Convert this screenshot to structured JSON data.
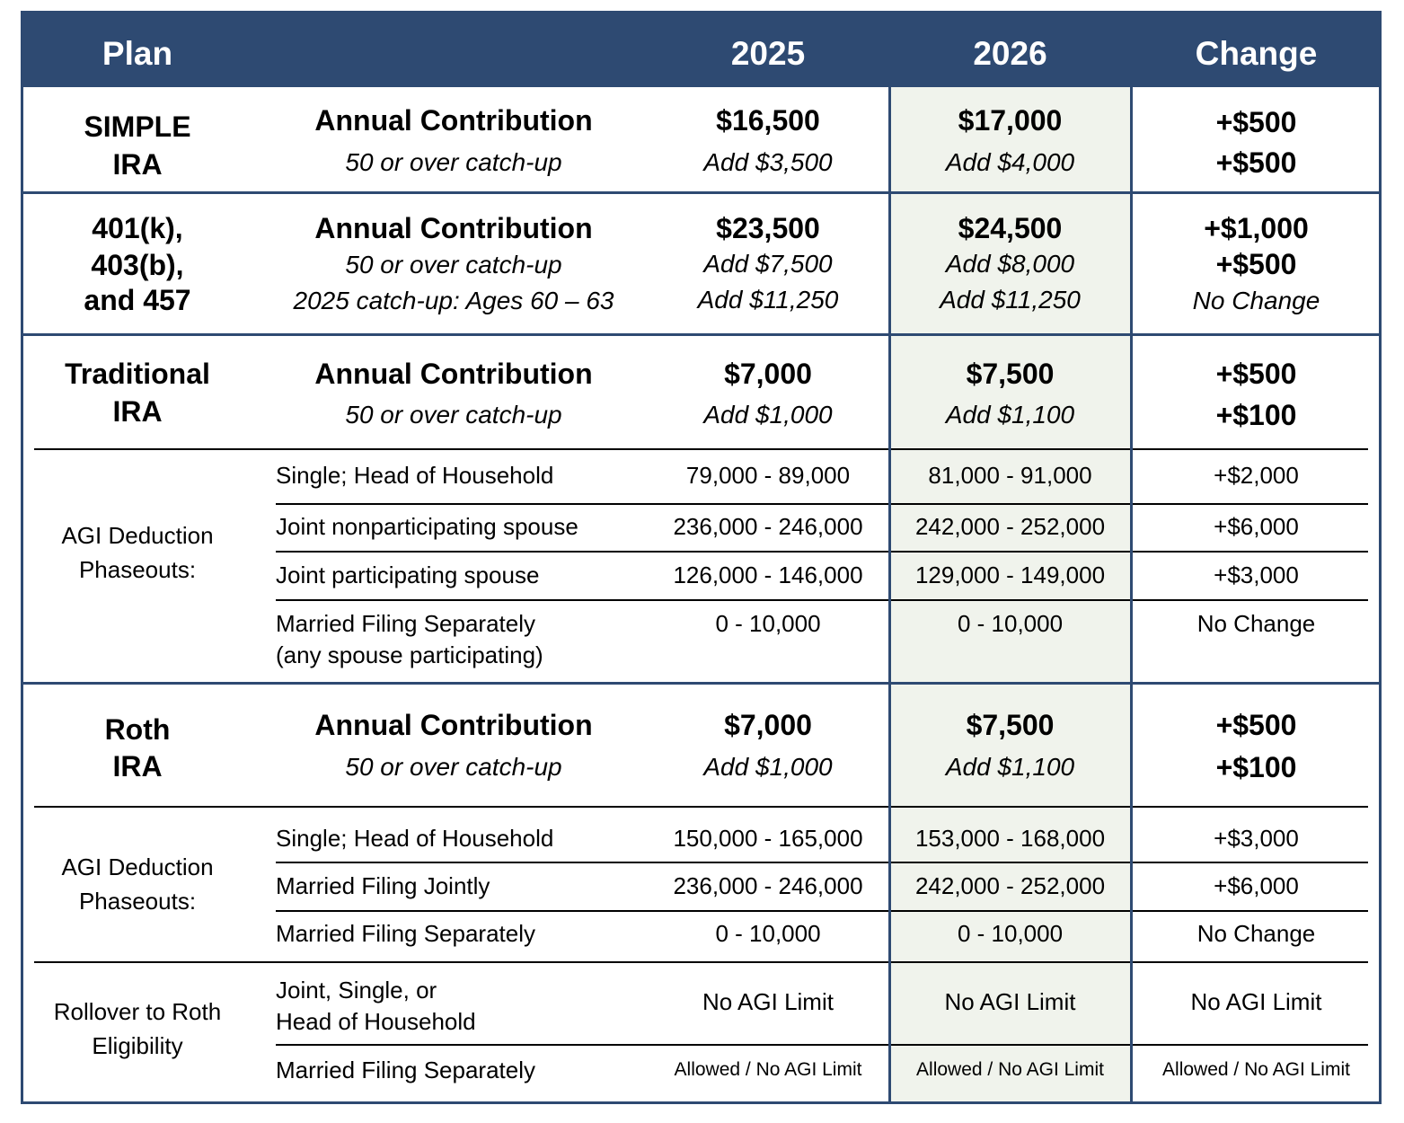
{
  "header": {
    "plan": "Plan",
    "y2025": "2025",
    "y2026": "2026",
    "change": "Change"
  },
  "colors": {
    "header_bg": "#2e4a72",
    "border": "#2e4a72",
    "highlight_column_bg": "#f0f3ec",
    "header_text": "#ffffff"
  },
  "simple": {
    "plan": [
      "SIMPLE",
      "IRA"
    ],
    "label": "Annual Contribution",
    "sublabel": "50 or over catch-up",
    "v2025": [
      "$16,500",
      "Add $3,500"
    ],
    "v2026": [
      "$17,000",
      "Add $4,000"
    ],
    "change": [
      "+$500",
      "+$500"
    ]
  },
  "k401": {
    "plan": [
      "401(k),",
      "403(b),",
      "and 457"
    ],
    "label": "Annual Contribution",
    "sublabels": [
      "50 or over catch-up",
      "2025 catch-up: Ages 60 – 63"
    ],
    "v2025": [
      "$23,500",
      "Add $7,500",
      "Add $11,250"
    ],
    "v2026": [
      "$24,500",
      "Add $8,000",
      "Add $11,250"
    ],
    "change": [
      "+$1,000",
      "+$500",
      "No Change"
    ]
  },
  "traditional": {
    "plan": [
      "Traditional",
      "IRA"
    ],
    "label": "Annual Contribution",
    "sublabel": "50 or over catch-up",
    "v2025": [
      "$7,000",
      "Add $1,000"
    ],
    "v2026": [
      "$7,500",
      "Add $1,100"
    ],
    "change": [
      "+$500",
      "+$100"
    ],
    "agi_label": [
      "AGI Deduction",
      "Phaseouts:"
    ],
    "agi_rows": [
      {
        "filer": [
          "Single; Head of Household"
        ],
        "v2025": "79,000 - 89,000",
        "v2026": "81,000 - 91,000",
        "change": "+$2,000"
      },
      {
        "filer": [
          "Joint nonparticipating spouse"
        ],
        "v2025": "236,000 - 246,000",
        "v2026": "242,000 - 252,000",
        "change": "+$6,000"
      },
      {
        "filer": [
          "Joint participating spouse"
        ],
        "v2025": "126,000 - 146,000",
        "v2026": "129,000 - 149,000",
        "change": "+$3,000"
      },
      {
        "filer": [
          "Married Filing Separately",
          "(any spouse participating)"
        ],
        "v2025": "0 - 10,000",
        "v2026": "0 - 10,000",
        "change": "No Change"
      }
    ]
  },
  "roth": {
    "plan": [
      "Roth",
      "IRA"
    ],
    "label": "Annual Contribution",
    "sublabel": "50 or over catch-up",
    "v2025": [
      "$7,000",
      "Add $1,000"
    ],
    "v2026": [
      "$7,500",
      "Add $1,100"
    ],
    "change": [
      "+$500",
      "+$100"
    ],
    "agi_label": [
      "AGI Deduction",
      "Phaseouts:"
    ],
    "agi_rows": [
      {
        "filer": [
          "Single; Head of Household"
        ],
        "v2025": "150,000 - 165,000",
        "v2026": "153,000 - 168,000",
        "change": "+$3,000"
      },
      {
        "filer": [
          "Married Filing Jointly"
        ],
        "v2025": "236,000 - 246,000",
        "v2026": "242,000 - 252,000",
        "change": "+$6,000"
      },
      {
        "filer": [
          "Married Filing Separately"
        ],
        "v2025": "0 - 10,000",
        "v2026": "0 - 10,000",
        "change": "No Change"
      }
    ],
    "rollover_label": [
      "Rollover to Roth",
      "Eligibility"
    ],
    "rollover_rows": [
      {
        "filer": [
          "Joint, Single, or",
          "Head of Household"
        ],
        "v2025": "No AGI Limit",
        "v2026": "No AGI Limit",
        "change": "No AGI Limit"
      },
      {
        "filer": [
          "Married Filing Separately"
        ],
        "v2025": "Allowed / No AGI Limit",
        "v2026": "Allowed / No AGI Limit",
        "change": "Allowed / No AGI Limit"
      }
    ]
  }
}
